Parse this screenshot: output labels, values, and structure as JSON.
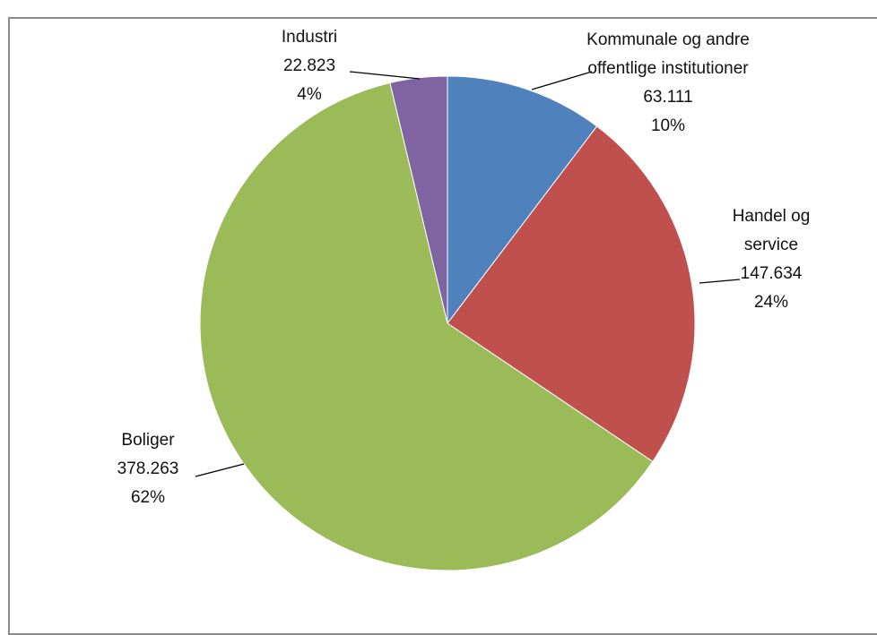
{
  "chart_data": {
    "type": "pie",
    "categories": [
      "Kommunale og andre offentlige institutioner",
      "Handel og service",
      "Boliger",
      "Industri"
    ],
    "values": [
      63111,
      147634,
      378263,
      22823
    ],
    "value_labels": [
      "63.111",
      "147.634",
      "378.263",
      "22.823"
    ],
    "percentages": [
      10,
      24,
      62,
      4
    ],
    "percentage_labels": [
      "10%",
      "24%",
      "62%",
      "4%"
    ],
    "colors": [
      "#4f81bd",
      "#c0504d",
      "#9bbb59",
      "#8064a2"
    ]
  }
}
